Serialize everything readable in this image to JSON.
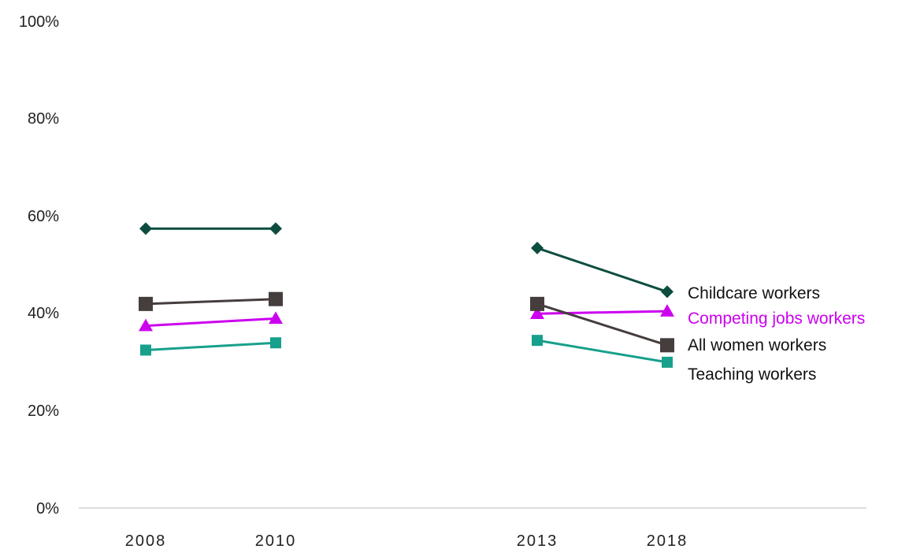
{
  "chart_data": {
    "type": "line",
    "title": "",
    "xlabel": "",
    "ylabel": "",
    "categories": [
      "2008",
      "2010",
      "2013",
      "2018"
    ],
    "y_tick_labels": [
      "0%",
      "20%",
      "40%",
      "60%",
      "80%",
      "100%"
    ],
    "ylim": [
      0,
      100
    ],
    "grid": false,
    "legend": "direct labels at right end of lines",
    "segments": [
      [
        0,
        1
      ],
      [
        2,
        3
      ]
    ],
    "series": [
      {
        "name": "Childcare workers",
        "values": [
          57.5,
          57.5,
          53.5,
          44.5
        ],
        "color": "#0d4d3f",
        "marker": "diamond"
      },
      {
        "name": "Competing jobs workers",
        "values": [
          37.5,
          39,
          40,
          40.5
        ],
        "color": "#cc00ee",
        "marker": "triangle"
      },
      {
        "name": "All women workers",
        "values": [
          42,
          43,
          42,
          33.5
        ],
        "color": "#463d3d",
        "marker": "square"
      },
      {
        "name": "Teaching workers",
        "values": [
          32.5,
          34,
          34.5,
          30
        ],
        "color": "#17a08c",
        "marker": "square"
      }
    ]
  }
}
